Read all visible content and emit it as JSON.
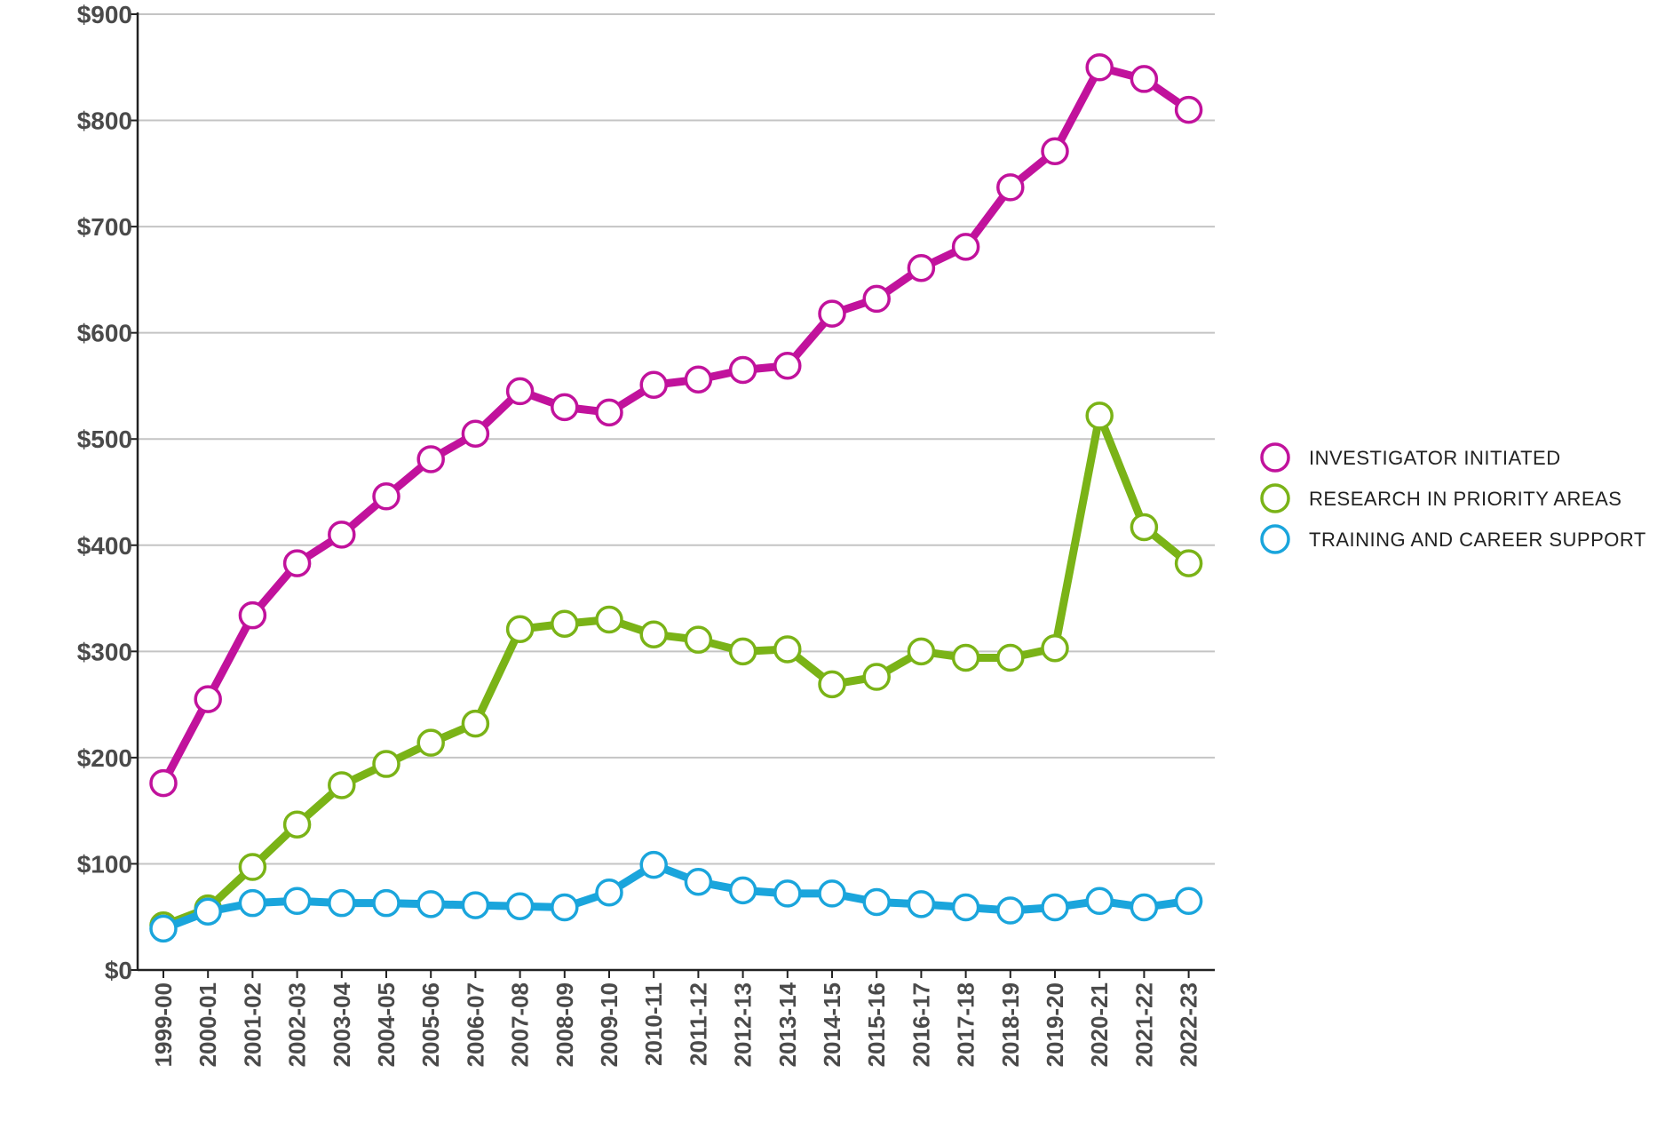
{
  "chart_data": {
    "type": "line",
    "title": "",
    "xlabel": "",
    "ylabel": "",
    "ylim": [
      0,
      900
    ],
    "yticks": [
      0,
      100,
      200,
      300,
      400,
      500,
      600,
      700,
      800,
      900
    ],
    "ytick_labels": [
      "$0",
      "$100",
      "$200",
      "$300",
      "$400",
      "$500",
      "$600",
      "$700",
      "$800",
      "$900"
    ],
    "grid": true,
    "legend_position": "right",
    "categories": [
      "1999-00",
      "2000-01",
      "2001-02",
      "2002-03",
      "2003-04",
      "2004-05",
      "2005-06",
      "2006-07",
      "2007-08",
      "2008-09",
      "2009-10",
      "2010-11",
      "2011-12",
      "2012-13",
      "2013-14",
      "2014-15",
      "2015-16",
      "2016-17",
      "2017-18",
      "2018-19",
      "2019-20",
      "2020-21",
      "2021-22",
      "2022-23"
    ],
    "series": [
      {
        "name": "INVESTIGATOR INITIATED",
        "color": "#c1129c",
        "values": [
          176,
          255,
          334,
          383,
          410,
          446,
          481,
          505,
          545,
          530,
          525,
          551,
          556,
          565,
          569,
          618,
          632,
          661,
          681,
          737,
          771,
          850,
          839,
          810
        ]
      },
      {
        "name": "RESEARCH IN PRIORITY AREAS",
        "color": "#7ab317",
        "values": [
          42,
          58,
          97,
          137,
          174,
          194,
          214,
          232,
          321,
          326,
          330,
          316,
          311,
          300,
          302,
          269,
          276,
          300,
          294,
          294,
          303,
          522,
          417,
          383
        ]
      },
      {
        "name": "TRAINING AND CAREER SUPPORT",
        "color": "#1aa5dc",
        "values": [
          39,
          55,
          63,
          65,
          63,
          63,
          62,
          61,
          60,
          59,
          73,
          99,
          83,
          75,
          72,
          72,
          64,
          62,
          59,
          56,
          59,
          65,
          59,
          65
        ]
      }
    ]
  }
}
